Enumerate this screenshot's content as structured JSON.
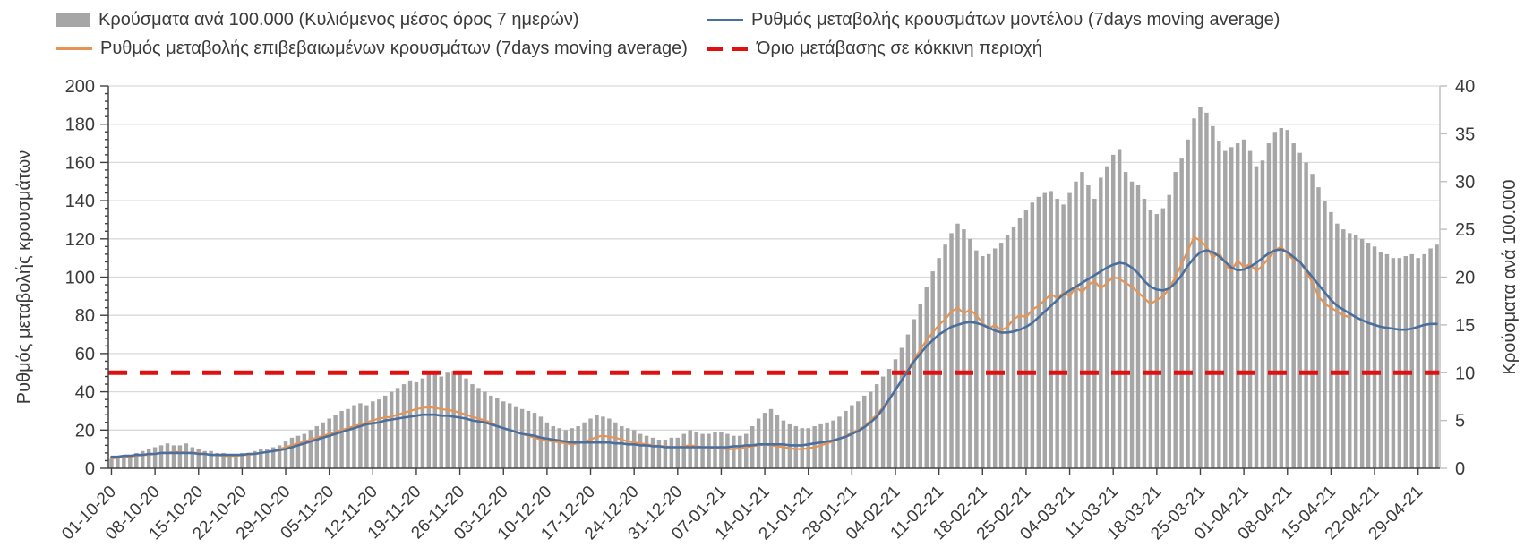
{
  "page": {
    "background": "#ffffff",
    "text_color": "#3a3a3a"
  },
  "legend": {
    "position": "top",
    "items": [
      {
        "id": "bars",
        "swatch": "bar",
        "color": "#a6a6a6",
        "label": "Κρούσματα ανά 100.000 (Κυλιόμενος μέσος όρος 7 ημερών)"
      },
      {
        "id": "model_rate",
        "swatch": "line",
        "color": "#4a6f9e",
        "label": "Ρυθμός μεταβολής κρουσμάτων μοντέλου (7days moving average)"
      },
      {
        "id": "confirmed_rate",
        "swatch": "line",
        "color": "#e59455",
        "label": "Ρυθμός μεταβολής επιβεβαιωμένων κρουσμάτων (7days moving average)"
      },
      {
        "id": "threshold",
        "swatch": "dashed-line",
        "color": "#e01010",
        "label": "Όριο μετάβασης σε κόκκινη περιοχή"
      }
    ]
  },
  "chart_data": {
    "type": "bar",
    "subtype": "daily bars with two moving-average lines and a horizontal threshold line",
    "title": "",
    "grid": "horizontal major gridlines on",
    "legend_position": "top",
    "left_axis": {
      "label": "Ρυθμός μεταβολής κρουσμάτων",
      "min": 0,
      "max": 200,
      "step": 20,
      "minor_step": 4
    },
    "right_axis": {
      "label": "Κρούσματα ανά 100.000",
      "min": 0,
      "max": 40,
      "step": 5
    },
    "x_tick_labels": [
      "01-10-20",
      "08-10-20",
      "15-10-20",
      "22-10-20",
      "29-10-20",
      "05-11-20",
      "12-11-20",
      "19-11-20",
      "26-11-20",
      "03-12-20",
      "10-12-20",
      "17-12-20",
      "24-12-20",
      "31-12-20",
      "07-01-21",
      "14-01-21",
      "21-01-21",
      "28-01-21",
      "04-02-21",
      "11-02-21",
      "18-02-21",
      "25-02-21",
      "04-03-21",
      "11-03-21",
      "18-03-21",
      "25-03-21",
      "01-04-21",
      "08-04-21",
      "15-04-21",
      "22-04-21",
      "29-04-21"
    ],
    "x_tick_every_days": 7,
    "threshold": {
      "label": "Όριο μετάβασης σε κόκκινη περιοχή",
      "axis": "right",
      "value": 10,
      "value_left_scale": 50,
      "color": "#e01010"
    },
    "series": {
      "bars": {
        "name": "Κρούσματα ανά 100.000 (Κυλιόμενος μέσος όρος 7 ημερών)",
        "axis": "right",
        "color": "#a6a6a6",
        "values": [
          1.0,
          1.2,
          1.2,
          1.4,
          1.6,
          1.8,
          2.0,
          2.2,
          2.4,
          2.6,
          2.4,
          2.4,
          2.6,
          2.2,
          2.0,
          1.8,
          1.8,
          1.6,
          1.6,
          1.4,
          1.4,
          1.6,
          1.6,
          1.8,
          2.0,
          2.0,
          2.2,
          2.4,
          2.8,
          3.2,
          3.4,
          3.6,
          4.0,
          4.4,
          4.8,
          5.2,
          5.6,
          6.0,
          6.2,
          6.6,
          6.8,
          6.6,
          7.0,
          7.2,
          7.6,
          8.0,
          8.4,
          8.8,
          9.2,
          9.0,
          9.4,
          9.8,
          10.0,
          9.6,
          10.0,
          10.2,
          9.8,
          9.4,
          8.8,
          8.4,
          8.0,
          7.6,
          7.4,
          7.0,
          6.8,
          6.4,
          6.2,
          6.0,
          5.8,
          5.4,
          4.8,
          4.4,
          4.2,
          4.0,
          4.2,
          4.4,
          4.8,
          5.2,
          5.6,
          5.4,
          5.2,
          4.8,
          4.4,
          4.2,
          4.0,
          3.6,
          3.4,
          3.2,
          3.0,
          3.0,
          3.2,
          3.2,
          3.6,
          4.0,
          3.8,
          3.6,
          3.6,
          3.8,
          3.8,
          3.6,
          3.4,
          3.4,
          3.6,
          4.4,
          5.2,
          5.8,
          6.2,
          5.6,
          5.0,
          4.6,
          4.4,
          4.2,
          4.2,
          4.4,
          4.6,
          4.8,
          5.0,
          5.4,
          6.0,
          6.6,
          7.0,
          7.6,
          8.0,
          8.8,
          9.6,
          10.4,
          11.4,
          12.6,
          14.0,
          15.6,
          17.2,
          19.0,
          20.6,
          22.0,
          23.4,
          24.6,
          25.6,
          25.0,
          24.0,
          22.8,
          22.2,
          22.4,
          23.0,
          23.6,
          24.4,
          25.2,
          26.2,
          27.0,
          27.8,
          28.4,
          28.8,
          29.0,
          28.2,
          27.6,
          28.8,
          30.0,
          31.0,
          29.6,
          28.2,
          30.4,
          31.6,
          32.8,
          33.4,
          31.0,
          30.0,
          29.6,
          28.2,
          27.0,
          26.6,
          27.2,
          28.6,
          31.0,
          32.4,
          34.4,
          36.6,
          37.8,
          37.2,
          35.8,
          34.2,
          33.2,
          33.6,
          34.0,
          34.4,
          33.2,
          31.6,
          32.2,
          34.0,
          35.2,
          35.6,
          35.4,
          34.0,
          33.0,
          32.0,
          30.8,
          29.4,
          28.0,
          26.8,
          25.6,
          25.0,
          24.6,
          24.4,
          24.0,
          23.6,
          23.2,
          22.6,
          22.4,
          22.0,
          22.0,
          22.2,
          22.4,
          22.0,
          22.4,
          23.0,
          23.4
        ]
      },
      "confirmed_rate": {
        "name": "Ρυθμός μεταβολής επιβεβαιωμένων κρουσμάτων (7days moving average)",
        "axis": "left",
        "color": "#e59455",
        "values": [
          5,
          5.5,
          6,
          6,
          6.5,
          7,
          7,
          7.5,
          8,
          8,
          8.5,
          8.5,
          8,
          8,
          8,
          7.5,
          7,
          7,
          6.5,
          6.5,
          6.5,
          7,
          7,
          7.5,
          8,
          8.5,
          9,
          10,
          11,
          12,
          13,
          14,
          15,
          16,
          17,
          18,
          19,
          20,
          21,
          22,
          23,
          24,
          25,
          26,
          26.5,
          27,
          28,
          29,
          30,
          31,
          31.5,
          32,
          31.5,
          31,
          30.5,
          30,
          29,
          28,
          27,
          26,
          25,
          24,
          22,
          21,
          20,
          19,
          18,
          17,
          16,
          15,
          14.5,
          14,
          13.5,
          13,
          12.5,
          13,
          14,
          15,
          16.5,
          17,
          16.5,
          16,
          15,
          14,
          13.5,
          13,
          12.5,
          12,
          11.5,
          11.5,
          11,
          11,
          11.5,
          12,
          11.5,
          11,
          11,
          10.5,
          10.5,
          10,
          10,
          10.5,
          11,
          11.5,
          12,
          12.5,
          12,
          11.5,
          11,
          10.5,
          10,
          10,
          10.5,
          11,
          12,
          13,
          14,
          15.5,
          17,
          18.5,
          20,
          22,
          25,
          28,
          32,
          36,
          41,
          46,
          52,
          57,
          62,
          67,
          71,
          75,
          78,
          82,
          84,
          81,
          83,
          80,
          76,
          73,
          75,
          72,
          74,
          78,
          80,
          79,
          83,
          85,
          88,
          91,
          89,
          92,
          90,
          95,
          92,
          96,
          98,
          94,
          97,
          100,
          99,
          97,
          95,
          92,
          89,
          86,
          88,
          90,
          94,
          100,
          107,
          114,
          121,
          119,
          116,
          110,
          113,
          107,
          103,
          109,
          105,
          107,
          103,
          106,
          110,
          114,
          116,
          112,
          109,
          108,
          103,
          97,
          90,
          86,
          84,
          82,
          80,
          79,
          null,
          null,
          null,
          null,
          null,
          null,
          null,
          null,
          null,
          null,
          null,
          null,
          null,
          null
        ]
      },
      "model_rate": {
        "name": "Ρυθμός μεταβολής κρουσμάτων μοντέλου (7days moving average)",
        "axis": "left",
        "color": "#4a6f9e",
        "values": [
          6,
          6,
          6.5,
          6.5,
          7,
          7,
          7.5,
          7.5,
          8,
          8,
          8,
          8,
          8,
          8,
          7.5,
          7.5,
          7,
          7,
          7,
          7,
          7,
          7,
          7.5,
          7.5,
          8,
          8.5,
          9,
          9.5,
          10,
          11,
          12,
          13,
          14,
          15,
          16,
          17,
          18,
          19,
          20,
          21,
          22,
          23,
          23.5,
          24,
          25,
          25.5,
          26,
          26.5,
          27,
          27.5,
          28,
          28,
          28,
          27.5,
          27.5,
          27,
          26.5,
          26,
          25,
          24.5,
          24,
          23,
          22,
          21,
          20,
          19,
          18,
          17.5,
          17,
          16,
          15.5,
          15,
          14.5,
          14,
          13.5,
          13.5,
          13.5,
          13.5,
          13.5,
          13.5,
          13.5,
          13,
          13,
          12.5,
          12.5,
          12,
          12,
          11.5,
          11.5,
          11,
          11,
          11,
          11,
          11,
          11,
          11,
          11,
          11,
          11,
          11,
          11.5,
          11.5,
          12,
          12,
          12.5,
          12.5,
          12.5,
          12.5,
          12.5,
          12,
          12,
          12,
          12.5,
          13,
          13.5,
          14,
          14.5,
          15.5,
          16.5,
          18,
          19.5,
          21.5,
          24,
          27,
          31,
          36,
          41,
          46,
          51,
          56,
          60,
          64,
          67,
          70,
          72,
          74,
          75,
          76,
          76.5,
          76,
          75,
          73.5,
          72,
          71,
          71,
          71.5,
          72.5,
          74,
          76,
          79,
          82,
          85,
          88,
          91,
          93,
          95,
          97,
          99,
          101,
          103,
          105,
          106.5,
          107.5,
          107,
          105,
          102,
          98,
          95,
          93.5,
          93,
          94,
          97,
          101,
          106,
          110,
          113,
          114,
          113,
          111,
          108,
          105,
          103.5,
          104,
          105.5,
          107.5,
          110,
          112.5,
          114,
          114.5,
          113,
          110.5,
          108,
          104,
          100,
          96,
          92,
          88,
          85,
          83,
          81,
          79,
          77.5,
          76,
          75,
          74,
          73.5,
          73,
          72.5,
          72.5,
          73,
          74,
          75,
          75.5,
          75.5
        ]
      }
    },
    "colors": {
      "bars": "#a6a6a6",
      "model_line": "#4a6f9e",
      "confirmed_line": "#e59455",
      "threshold": "#e01010",
      "gridline": "#d9d9d9",
      "axis_dark": "#404040",
      "axis_light": "#bfbfbf"
    }
  }
}
